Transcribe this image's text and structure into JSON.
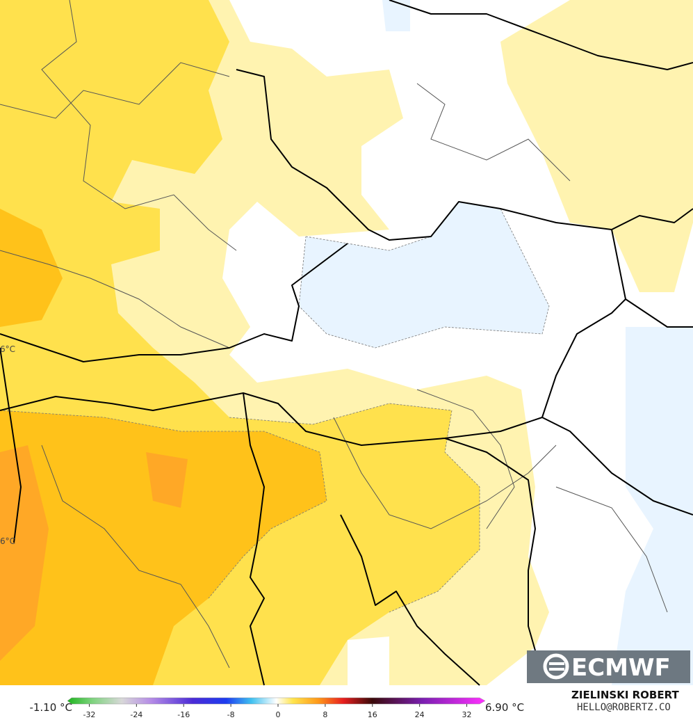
{
  "map": {
    "labels": [
      "6°C",
      "6°C"
    ]
  },
  "colorbar": {
    "min_label": "-1.10 °C",
    "max_label": "6.90 °C",
    "lim": [
      -35,
      35
    ],
    "ticks": [
      -32,
      -24,
      -16,
      -8,
      0,
      8,
      16,
      24,
      32
    ]
  },
  "credit": {
    "author": "ZIELINSKI ROBERT",
    "contact": "HELLO@ROBERTZ.CO"
  },
  "logo": "ECMWF"
}
